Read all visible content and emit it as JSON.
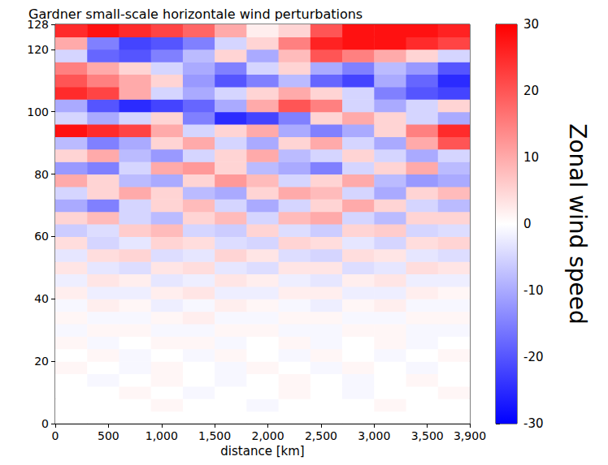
{
  "chart_data": {
    "type": "heatmap",
    "title": "Gardner small-scale horizontale wind perturbations",
    "xlabel": "distance [km]",
    "xlim": [
      0,
      3900
    ],
    "xticks": [
      0,
      500,
      1000,
      1500,
      2000,
      2500,
      3000,
      3500
    ],
    "ylim": [
      0,
      128
    ],
    "yticks": [
      0,
      20,
      40,
      60,
      80,
      100,
      120
    ],
    "grid": false,
    "x_bins": [
      0,
      300,
      600,
      900,
      1200,
      1500,
      1800,
      2100,
      2400,
      2700,
      3000,
      3300,
      3600,
      3900
    ],
    "y_bins": [
      0,
      4,
      8,
      12,
      16,
      20,
      24,
      28,
      32,
      36,
      40,
      44,
      48,
      52,
      56,
      60,
      64,
      68,
      72,
      76,
      80,
      84,
      88,
      92,
      96,
      100,
      104,
      108,
      112,
      116,
      120,
      124,
      128
    ],
    "values": [
      [
        0,
        0,
        0,
        0,
        0,
        0,
        0,
        0,
        0,
        0,
        0,
        0,
        0
      ],
      [
        0,
        0,
        0,
        1,
        0,
        0,
        -1,
        0,
        0,
        0,
        1,
        0,
        0
      ],
      [
        0,
        0,
        1,
        0,
        -1,
        0,
        0,
        1,
        0,
        -1,
        0,
        0,
        1
      ],
      [
        0,
        -1,
        0,
        1,
        0,
        -1,
        0,
        1,
        0,
        -1,
        0,
        1,
        0
      ],
      [
        1,
        0,
        -1,
        1,
        0,
        -1,
        1,
        0,
        -1,
        1,
        0,
        -1,
        0
      ],
      [
        0,
        1,
        -1,
        0,
        -1,
        1,
        0,
        -1,
        1,
        0,
        -1,
        0,
        1
      ],
      [
        1,
        -1,
        0,
        1,
        1,
        -1,
        0,
        1,
        -1,
        0,
        1,
        -1,
        0
      ],
      [
        -1,
        1,
        1,
        -1,
        -1,
        1,
        1,
        -1,
        -1,
        1,
        1,
        -1,
        -1
      ],
      [
        1,
        -1,
        -1,
        1,
        2,
        -1,
        -1,
        1,
        1,
        -1,
        -1,
        1,
        1
      ],
      [
        -1,
        2,
        1,
        -2,
        -1,
        2,
        1,
        -1,
        -2,
        1,
        2,
        -1,
        -1
      ],
      [
        2,
        -2,
        -2,
        2,
        3,
        -2,
        -2,
        2,
        2,
        -2,
        -2,
        2,
        1
      ],
      [
        -2,
        3,
        2,
        -3,
        -2,
        3,
        2,
        -2,
        -3,
        2,
        3,
        -2,
        -2
      ],
      [
        3,
        -3,
        -4,
        3,
        4,
        -3,
        -4,
        3,
        3,
        -4,
        -3,
        4,
        3
      ],
      [
        -3,
        4,
        5,
        -4,
        -3,
        5,
        3,
        -4,
        -5,
        4,
        3,
        -3,
        -4
      ],
      [
        4,
        -5,
        -3,
        5,
        4,
        -4,
        -5,
        5,
        4,
        -3,
        -5,
        4,
        5
      ],
      [
        -6,
        -4,
        6,
        8,
        -5,
        -6,
        5,
        -4,
        -6,
        5,
        6,
        -5,
        -4
      ],
      [
        5,
        8,
        -5,
        -8,
        5,
        8,
        -5,
        8,
        10,
        -5,
        -8,
        5,
        5
      ],
      [
        -10,
        -15,
        -5,
        5,
        8,
        -5,
        -10,
        -5,
        5,
        10,
        5,
        -5,
        -8
      ],
      [
        -5,
        5,
        10,
        5,
        -8,
        -10,
        5,
        10,
        8,
        -5,
        -10,
        5,
        8
      ],
      [
        10,
        5,
        -8,
        -10,
        5,
        12,
        8,
        -5,
        5,
        10,
        -8,
        -12,
        -10
      ],
      [
        -12,
        -15,
        -5,
        10,
        12,
        5,
        -8,
        -10,
        -15,
        -5,
        5,
        10,
        -8
      ],
      [
        5,
        10,
        -8,
        -12,
        -5,
        5,
        10,
        -8,
        -5,
        5,
        -5,
        -10,
        -5
      ],
      [
        -8,
        -15,
        -10,
        5,
        10,
        -5,
        -10,
        5,
        10,
        -5,
        -10,
        10,
        20
      ],
      [
        28,
        25,
        22,
        10,
        -5,
        5,
        10,
        -10,
        -15,
        -10,
        5,
        15,
        25
      ],
      [
        -5,
        -10,
        -5,
        5,
        -15,
        -25,
        -22,
        -15,
        5,
        10,
        5,
        -5,
        -10
      ],
      [
        -10,
        -20,
        -25,
        -22,
        -18,
        -10,
        10,
        20,
        15,
        -5,
        -10,
        -5,
        5
      ],
      [
        25,
        22,
        10,
        -5,
        -10,
        -5,
        5,
        10,
        5,
        -5,
        -15,
        -20,
        -22
      ],
      [
        20,
        15,
        10,
        5,
        -12,
        -20,
        -15,
        -8,
        -18,
        -22,
        -10,
        -18,
        -25
      ],
      [
        15,
        10,
        5,
        -5,
        -10,
        -15,
        -5,
        5,
        -10,
        -15,
        -8,
        -12,
        -20
      ],
      [
        -5,
        -18,
        -20,
        -15,
        -8,
        5,
        -10,
        8,
        20,
        15,
        10,
        5,
        -5
      ],
      [
        10,
        -15,
        -22,
        -20,
        -15,
        -5,
        5,
        15,
        26,
        28,
        28,
        25,
        22
      ],
      [
        25,
        28,
        25,
        22,
        18,
        10,
        2,
        5,
        20,
        28,
        28,
        28,
        26
      ]
    ],
    "colorbar": {
      "label": "Zonal wind speed",
      "range": [
        -30,
        30
      ],
      "ticks": [
        -30,
        -20,
        -10,
        0,
        10,
        20,
        30
      ],
      "colors": [
        "#0000ff",
        "#ffffff",
        "#ff0000"
      ]
    }
  }
}
